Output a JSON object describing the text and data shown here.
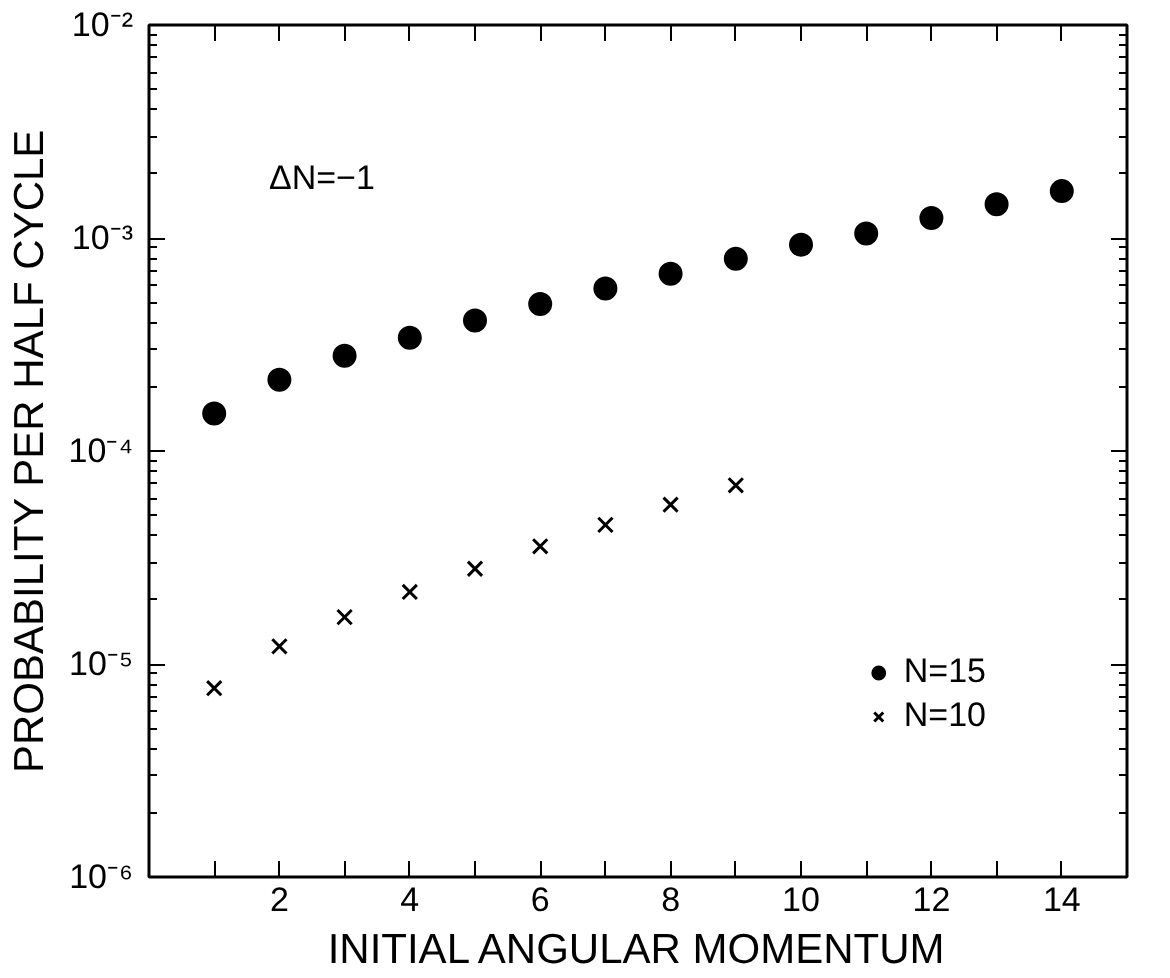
{
  "chart_data": {
    "type": "scatter",
    "xlabel": "INITIAL ANGULAR MOMENTUM",
    "ylabel": "PROBABILITY PER HALF CYCLE",
    "annotations": [
      "ΔN=−1"
    ],
    "x": [
      1,
      2,
      3,
      4,
      5,
      6,
      7,
      8,
      9,
      10,
      11,
      12,
      13,
      14
    ],
    "series": [
      {
        "name": "N=15",
        "color": "#000000",
        "marker": "circle",
        "values": [
          0.00015,
          0.000216,
          0.00028,
          0.00034,
          0.00041,
          0.00049,
          0.00058,
          0.00068,
          0.0008,
          0.00093,
          0.00105,
          0.00124,
          0.00144,
          0.00166
        ]
      },
      {
        "name": "N=10",
        "color": "#000000",
        "marker": "cross",
        "values": [
          7.7e-06,
          1.21e-05,
          1.66e-05,
          2.18e-05,
          2.8e-05,
          3.57e-05,
          4.5e-05,
          5.6e-05,
          6.9e-05,
          null,
          null,
          null,
          null,
          null
        ]
      }
    ],
    "log": "y",
    "grid": false,
    "legend": "bottom right",
    "xlim": [
      0,
      15
    ],
    "xticks": [
      {
        "value": 1,
        "label": null
      },
      2,
      {
        "value": 3,
        "label": null
      },
      4,
      {
        "value": 5,
        "label": null
      },
      6,
      {
        "value": 7,
        "label": null
      },
      8,
      {
        "value": 9,
        "label": null
      },
      10,
      {
        "value": 11,
        "label": null
      },
      12,
      {
        "value": 13,
        "label": null
      },
      14
    ],
    "ylim": [
      1e-06,
      0.01
    ],
    "yticks": [
      {
        "value": 1e-06,
        "label": "10⁻⁶"
      },
      {
        "value": 1e-05,
        "label": "10⁻⁵"
      },
      {
        "value": 0.0001,
        "label": "10⁻⁴"
      },
      {
        "value": 0.001,
        "label": "10⁻³"
      },
      {
        "value": 0.01,
        "label": "10⁻²"
      }
    ]
  }
}
